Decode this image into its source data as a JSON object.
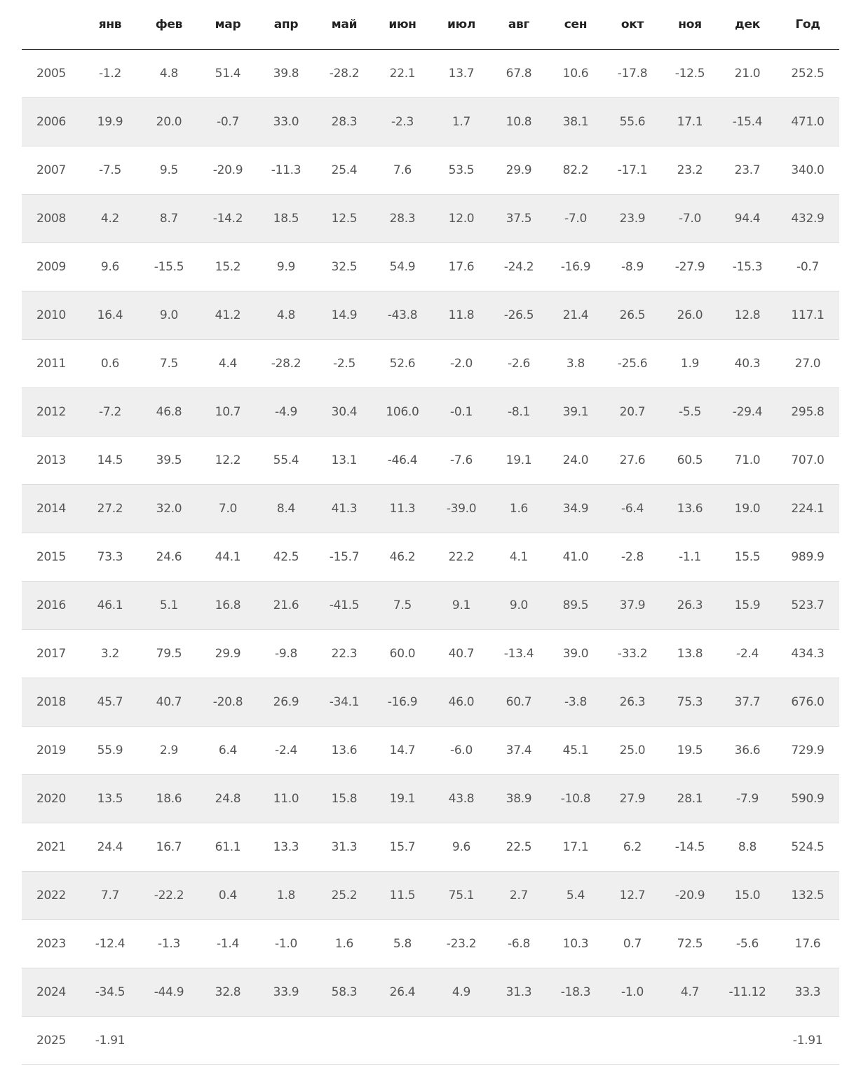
{
  "table": {
    "headers": [
      "янв",
      "фев",
      "мар",
      "апр",
      "май",
      "июн",
      "июл",
      "авг",
      "сен",
      "окт",
      "ноя",
      "дек",
      "Год"
    ],
    "rows": [
      {
        "year": "2005",
        "months": [
          "-1.2",
          "4.8",
          "51.4",
          "39.8",
          "-28.2",
          "22.1",
          "13.7",
          "67.8",
          "10.6",
          "-17.8",
          "-12.5",
          "21.0"
        ],
        "total": "252.5"
      },
      {
        "year": "2006",
        "months": [
          "19.9",
          "20.0",
          "-0.7",
          "33.0",
          "28.3",
          "-2.3",
          "1.7",
          "10.8",
          "38.1",
          "55.6",
          "17.1",
          "-15.4"
        ],
        "total": "471.0"
      },
      {
        "year": "2007",
        "months": [
          "-7.5",
          "9.5",
          "-20.9",
          "-11.3",
          "25.4",
          "7.6",
          "53.5",
          "29.9",
          "82.2",
          "-17.1",
          "23.2",
          "23.7"
        ],
        "total": "340.0"
      },
      {
        "year": "2008",
        "months": [
          "4.2",
          "8.7",
          "-14.2",
          "18.5",
          "12.5",
          "28.3",
          "12.0",
          "37.5",
          "-7.0",
          "23.9",
          "-7.0",
          "94.4"
        ],
        "total": "432.9"
      },
      {
        "year": "2009",
        "months": [
          "9.6",
          "-15.5",
          "15.2",
          "9.9",
          "32.5",
          "54.9",
          "17.6",
          "-24.2",
          "-16.9",
          "-8.9",
          "-27.9",
          "-15.3"
        ],
        "total": "-0.7"
      },
      {
        "year": "2010",
        "months": [
          "16.4",
          "9.0",
          "41.2",
          "4.8",
          "14.9",
          "-43.8",
          "11.8",
          "-26.5",
          "21.4",
          "26.5",
          "26.0",
          "12.8"
        ],
        "total": "117.1"
      },
      {
        "year": "2011",
        "months": [
          "0.6",
          "7.5",
          "4.4",
          "-28.2",
          "-2.5",
          "52.6",
          "-2.0",
          "-2.6",
          "3.8",
          "-25.6",
          "1.9",
          "40.3"
        ],
        "total": "27.0"
      },
      {
        "year": "2012",
        "months": [
          "-7.2",
          "46.8",
          "10.7",
          "-4.9",
          "30.4",
          "106.0",
          "-0.1",
          "-8.1",
          "39.1",
          "20.7",
          "-5.5",
          "-29.4"
        ],
        "total": "295.8"
      },
      {
        "year": "2013",
        "months": [
          "14.5",
          "39.5",
          "12.2",
          "55.4",
          "13.1",
          "-46.4",
          "-7.6",
          "19.1",
          "24.0",
          "27.6",
          "60.5",
          "71.0"
        ],
        "total": "707.0"
      },
      {
        "year": "2014",
        "months": [
          "27.2",
          "32.0",
          "7.0",
          "8.4",
          "41.3",
          "11.3",
          "-39.0",
          "1.6",
          "34.9",
          "-6.4",
          "13.6",
          "19.0"
        ],
        "total": "224.1"
      },
      {
        "year": "2015",
        "months": [
          "73.3",
          "24.6",
          "44.1",
          "42.5",
          "-15.7",
          "46.2",
          "22.2",
          "4.1",
          "41.0",
          "-2.8",
          "-1.1",
          "15.5"
        ],
        "total": "989.9"
      },
      {
        "year": "2016",
        "months": [
          "46.1",
          "5.1",
          "16.8",
          "21.6",
          "-41.5",
          "7.5",
          "9.1",
          "9.0",
          "89.5",
          "37.9",
          "26.3",
          "15.9"
        ],
        "total": "523.7"
      },
      {
        "year": "2017",
        "months": [
          "3.2",
          "79.5",
          "29.9",
          "-9.8",
          "22.3",
          "60.0",
          "40.7",
          "-13.4",
          "39.0",
          "-33.2",
          "13.8",
          "-2.4"
        ],
        "total": "434.3"
      },
      {
        "year": "2018",
        "months": [
          "45.7",
          "40.7",
          "-20.8",
          "26.9",
          "-34.1",
          "-16.9",
          "46.0",
          "60.7",
          "-3.8",
          "26.3",
          "75.3",
          "37.7"
        ],
        "total": "676.0"
      },
      {
        "year": "2019",
        "months": [
          "55.9",
          "2.9",
          "6.4",
          "-2.4",
          "13.6",
          "14.7",
          "-6.0",
          "37.4",
          "45.1",
          "25.0",
          "19.5",
          "36.6"
        ],
        "total": "729.9"
      },
      {
        "year": "2020",
        "months": [
          "13.5",
          "18.6",
          "24.8",
          "11.0",
          "15.8",
          "19.1",
          "43.8",
          "38.9",
          "-10.8",
          "27.9",
          "28.1",
          "-7.9"
        ],
        "total": "590.9"
      },
      {
        "year": "2021",
        "months": [
          "24.4",
          "16.7",
          "61.1",
          "13.3",
          "31.3",
          "15.7",
          "9.6",
          "22.5",
          "17.1",
          "6.2",
          "-14.5",
          "8.8"
        ],
        "total": "524.5"
      },
      {
        "year": "2022",
        "months": [
          "7.7",
          "-22.2",
          "0.4",
          "1.8",
          "25.2",
          "11.5",
          "75.1",
          "2.7",
          "5.4",
          "12.7",
          "-20.9",
          "15.0"
        ],
        "total": "132.5"
      },
      {
        "year": "2023",
        "months": [
          "-12.4",
          "-1.3",
          "-1.4",
          "-1.0",
          "1.6",
          "5.8",
          "-23.2",
          "-6.8",
          "10.3",
          "0.7",
          "72.5",
          "-5.6"
        ],
        "total": "17.6"
      },
      {
        "year": "2024",
        "months": [
          "-34.5",
          "-44.9",
          "32.8",
          "33.9",
          "58.3",
          "26.4",
          "4.9",
          "31.3",
          "-18.3",
          "-1.0",
          "4.7",
          "-11.12"
        ],
        "total": "33.3"
      },
      {
        "year": "2025",
        "months": [
          "-1.91"
        ],
        "total": "-1.91"
      }
    ]
  }
}
